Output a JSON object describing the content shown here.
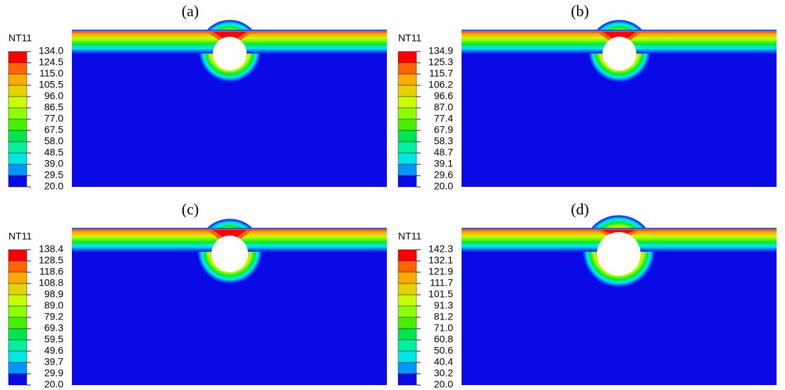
{
  "panels": [
    {
      "label": "(a)",
      "legend_title": "NT11",
      "legend_values": [
        "134.0",
        "124.5",
        "115.0",
        "105.5",
        "96.0",
        "86.5",
        "77.0",
        "67.5",
        "58.0",
        "48.5",
        "39.0",
        "29.5",
        "20.0"
      ]
    },
    {
      "label": "(b)",
      "legend_title": "NT11",
      "legend_values": [
        "134.9",
        "125.3",
        "115.7",
        "106.2",
        "96.6",
        "87.0",
        "77.4",
        "67.9",
        "58.3",
        "48.7",
        "39.1",
        "29.6",
        "20.0"
      ]
    },
    {
      "label": "(c)",
      "legend_title": "NT11",
      "legend_values": [
        "138.4",
        "128.5",
        "118.6",
        "108.8",
        "98.9",
        "89.0",
        "79.2",
        "69.3",
        "59.5",
        "49.6",
        "39.7",
        "29.9",
        "20.0"
      ]
    },
    {
      "label": "(d)",
      "legend_title": "NT11",
      "legend_values": [
        "142.3",
        "132.1",
        "121.9",
        "111.7",
        "101.5",
        "91.3",
        "81.2",
        "71.0",
        "60.8",
        "50.6",
        "40.4",
        "30.2",
        "20.0"
      ]
    }
  ]
}
